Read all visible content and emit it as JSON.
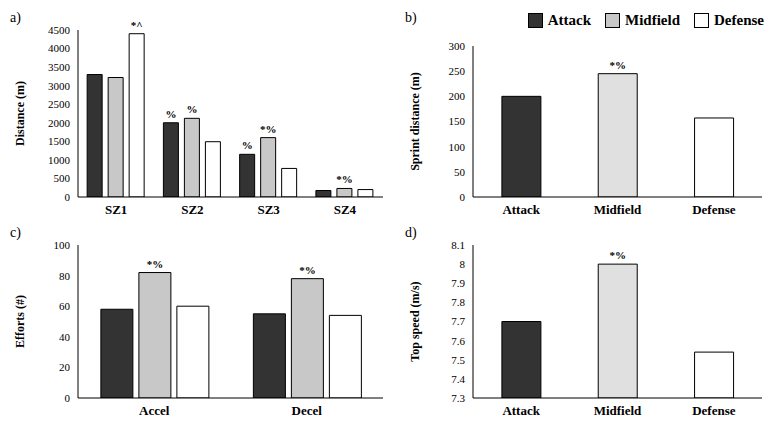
{
  "chart_data": [
    {
      "type": "bar",
      "panel": "a)",
      "y_label": "Distance (m)",
      "legend": "top-right",
      "categories": [
        "SZ1",
        "SZ2",
        "SZ3",
        "SZ4"
      ],
      "series": [
        {
          "name": "Attack",
          "color": "#333333",
          "values": [
            3300,
            2000,
            1150,
            175
          ],
          "annotations": [
            null,
            "%",
            "%",
            null
          ]
        },
        {
          "name": "Midfield",
          "color": "#c8c8c8",
          "values": [
            3220,
            2120,
            1600,
            230
          ],
          "annotations": [
            null,
            "%",
            "*%",
            "*%"
          ]
        },
        {
          "name": "Defense",
          "color": "#ffffff",
          "values": [
            4400,
            1490,
            770,
            200
          ],
          "annotations": [
            "*^",
            null,
            null,
            null
          ]
        }
      ],
      "ylim": [
        0,
        4500
      ],
      "yticks": [
        0,
        500,
        1000,
        1500,
        2000,
        2500,
        3000,
        3500,
        4000,
        4500
      ],
      "grid": false
    },
    {
      "type": "bar",
      "panel": "b)",
      "y_label": "Sprint distance (m)",
      "categories": [
        "Attack",
        "Midfield",
        "Defense"
      ],
      "values": [
        200,
        245,
        157
      ],
      "annotations": [
        null,
        "*%",
        null
      ],
      "colors": [
        "#333333",
        "#e0e0e0",
        "#ffffff"
      ],
      "ylim": [
        0,
        300
      ],
      "yticks": [
        0,
        50,
        100,
        150,
        200,
        250,
        300
      ],
      "grid": false
    },
    {
      "type": "bar",
      "panel": "c)",
      "y_label": "Efforts (#)",
      "categories": [
        "Accel",
        "Decel"
      ],
      "series": [
        {
          "name": "Attack",
          "color": "#333333",
          "values": [
            58,
            55
          ],
          "annotations": [
            null,
            null
          ]
        },
        {
          "name": "Midfield",
          "color": "#c8c8c8",
          "values": [
            82,
            78
          ],
          "annotations": [
            "*%",
            "*%"
          ]
        },
        {
          "name": "Defense",
          "color": "#ffffff",
          "values": [
            60,
            54
          ],
          "annotations": [
            null,
            null
          ]
        }
      ],
      "ylim": [
        0,
        100
      ],
      "yticks": [
        0,
        20,
        40,
        60,
        80,
        100
      ],
      "grid": false
    },
    {
      "type": "bar",
      "panel": "d)",
      "y_label": "Top speed (m/s)",
      "categories": [
        "Attack",
        "Midfield",
        "Defense"
      ],
      "values": [
        7.7,
        8.0,
        7.54
      ],
      "annotations": [
        null,
        "*%",
        null
      ],
      "colors": [
        "#333333",
        "#e0e0e0",
        "#ffffff"
      ],
      "ylim": [
        7.3,
        8.1
      ],
      "yticks": [
        7.3,
        7.4,
        7.5,
        7.6,
        7.7,
        7.8,
        7.9,
        8,
        8.1
      ],
      "grid": false
    }
  ]
}
